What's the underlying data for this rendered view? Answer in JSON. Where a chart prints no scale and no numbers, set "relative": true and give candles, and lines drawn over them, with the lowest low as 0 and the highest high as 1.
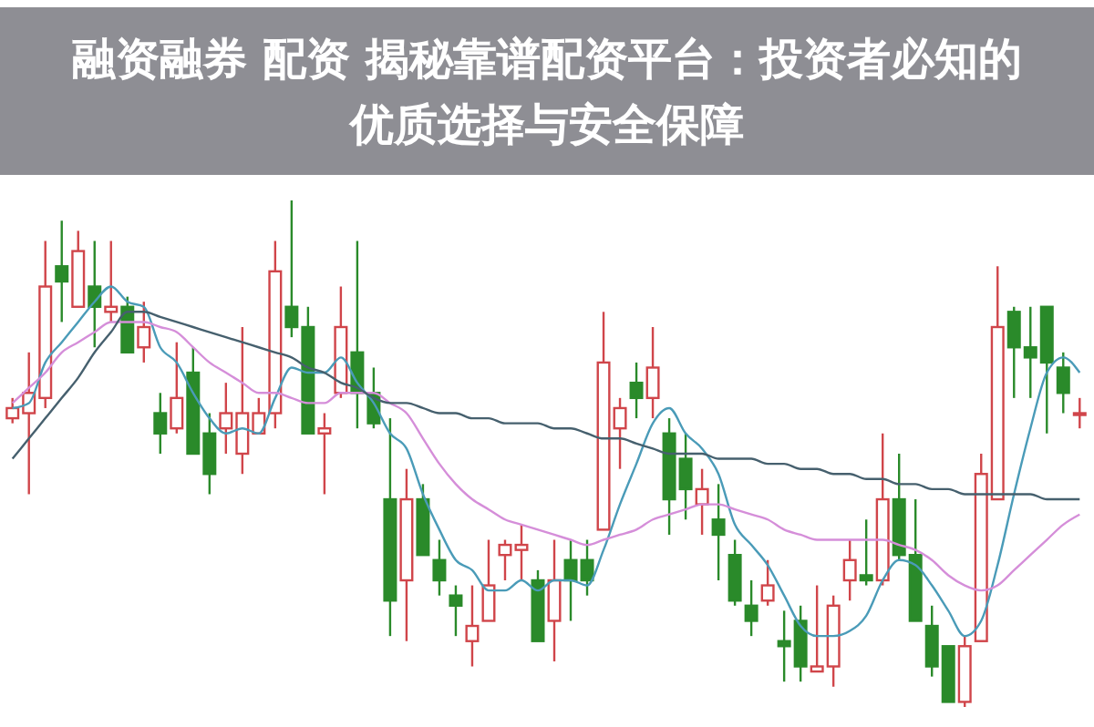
{
  "chart_data": {
    "type": "candlestick",
    "title": "融资融券 配资 揭秘靠谱配资平台：投资者必知的优质选择与安全保障",
    "relative": true,
    "categories": [
      null,
      null,
      null,
      null,
      null,
      null,
      null,
      null,
      null,
      null,
      null,
      null,
      null,
      null,
      null,
      null,
      null,
      null,
      null,
      null,
      null,
      null,
      null,
      null,
      null,
      null,
      null,
      null,
      null,
      null,
      null,
      null,
      null,
      null,
      null,
      null,
      null,
      null,
      null,
      null,
      null,
      null,
      null,
      null,
      null,
      null,
      null,
      null,
      null,
      null,
      null,
      null,
      null,
      null,
      null,
      null,
      null,
      null,
      null,
      null,
      null,
      null,
      null,
      null,
      null,
      null
    ],
    "ohlc": [
      [
        0.57,
        0.61,
        0.56,
        0.59
      ],
      [
        0.58,
        0.7,
        0.42,
        0.62
      ],
      [
        0.61,
        0.92,
        0.59,
        0.83
      ],
      [
        0.87,
        0.96,
        0.76,
        0.84
      ],
      [
        0.79,
        0.94,
        0.79,
        0.9
      ],
      [
        0.83,
        0.92,
        0.71,
        0.79
      ],
      [
        0.78,
        0.92,
        0.76,
        0.79
      ],
      [
        0.79,
        0.81,
        0.7,
        0.7
      ],
      [
        0.71,
        0.8,
        0.68,
        0.75
      ],
      [
        0.58,
        0.62,
        0.5,
        0.54
      ],
      [
        0.55,
        0.72,
        0.54,
        0.61
      ],
      [
        0.66,
        0.71,
        0.5,
        0.5
      ],
      [
        0.54,
        0.58,
        0.42,
        0.46
      ],
      [
        0.55,
        0.64,
        0.5,
        0.58
      ],
      [
        0.5,
        0.75,
        0.46,
        0.58
      ],
      [
        0.54,
        0.61,
        0.54,
        0.58
      ],
      [
        0.58,
        0.92,
        0.55,
        0.86
      ],
      [
        0.79,
        1,
        0.73,
        0.75
      ],
      [
        0.75,
        0.79,
        0.54,
        0.54
      ],
      [
        0.54,
        0.58,
        0.42,
        0.55
      ],
      [
        0.62,
        0.83,
        0.61,
        0.75
      ],
      [
        0.7,
        0.92,
        0.55,
        0.62
      ],
      [
        0.62,
        0.67,
        0.55,
        0.56
      ],
      [
        0.41,
        0.57,
        0.14,
        0.21
      ],
      [
        0.25,
        0.47,
        0.13,
        0.41
      ],
      [
        0.41,
        0.44,
        0.3,
        0.3
      ],
      [
        0.29,
        0.33,
        0.22,
        0.25
      ],
      [
        0.22,
        0.24,
        0.14,
        0.2
      ],
      [
        0.13,
        0.24,
        0.08,
        0.16
      ],
      [
        0.17,
        0.33,
        0.17,
        0.24
      ],
      [
        0.3,
        0.33,
        0.25,
        0.32
      ],
      [
        0.31,
        0.36,
        0.25,
        0.32
      ],
      [
        0.25,
        0.27,
        0.13,
        0.13
      ],
      [
        0.17,
        0.33,
        0.09,
        0.25
      ],
      [
        0.29,
        0.33,
        0.17,
        0.25
      ],
      [
        0.29,
        0.33,
        0.22,
        0.25
      ],
      [
        0.35,
        0.78,
        0.35,
        0.68
      ],
      [
        0.55,
        0.61,
        0.47,
        0.59
      ],
      [
        0.64,
        0.68,
        0.57,
        0.61
      ],
      [
        0.61,
        0.75,
        0.57,
        0.67
      ],
      [
        0.54,
        0.57,
        0.34,
        0.41
      ],
      [
        0.49,
        0.54,
        0.37,
        0.43
      ],
      [
        0.4,
        0.47,
        0.34,
        0.43
      ],
      [
        0.37,
        0.44,
        0.25,
        0.34
      ],
      [
        0.3,
        0.33,
        0.2,
        0.21
      ],
      [
        0.2,
        0.25,
        0.14,
        0.17
      ],
      [
        0.21,
        0.29,
        0.2,
        0.24
      ],
      [
        0.13,
        0.19,
        0.05,
        0.12
      ],
      [
        0.17,
        0.2,
        0.05,
        0.08
      ],
      [
        0.07,
        0.24,
        0.07,
        0.08
      ],
      [
        0.08,
        0.22,
        0.04,
        0.2
      ],
      [
        0.25,
        0.33,
        0.21,
        0.29
      ],
      [
        0.26,
        0.37,
        0.24,
        0.25
      ],
      [
        0.25,
        0.54,
        0.24,
        0.41
      ],
      [
        0.41,
        0.5,
        0.29,
        0.3
      ],
      [
        0.3,
        0.41,
        0.17,
        0.17
      ],
      [
        0.16,
        0.2,
        0.06,
        0.08
      ],
      [
        0.12,
        0.12,
        0.01,
        0.01
      ],
      [
        0.01,
        0.14,
        0,
        0.12
      ],
      [
        0.13,
        0.5,
        0.13,
        0.46
      ],
      [
        0.41,
        0.87,
        0.41,
        0.75
      ],
      [
        0.78,
        0.79,
        0.61,
        0.71
      ],
      [
        0.71,
        0.79,
        0.61,
        0.69
      ],
      [
        0.79,
        0.79,
        0.54,
        0.68
      ],
      [
        0.67,
        0.7,
        0.58,
        0.62
      ],
      [
        0.58,
        0.61,
        0.55,
        0.58
      ]
    ],
    "series": [
      {
        "type": "line",
        "color": "#4a9bb8",
        "values": [
          0.59,
          0.6,
          0.68,
          0.72,
          0.76,
          0.8,
          0.83,
          0.8,
          0.79,
          0.71,
          0.68,
          0.62,
          0.57,
          0.54,
          0.55,
          0.54,
          0.61,
          0.67,
          0.66,
          0.66,
          0.69,
          0.64,
          0.6,
          0.54,
          0.51,
          0.42,
          0.35,
          0.29,
          0.27,
          0.23,
          0.23,
          0.25,
          0.23,
          0.25,
          0.25,
          0.24,
          0.31,
          0.4,
          0.48,
          0.56,
          0.59,
          0.54,
          0.51,
          0.46,
          0.36,
          0.32,
          0.28,
          0.22,
          0.16,
          0.14,
          0.14,
          0.15,
          0.18,
          0.25,
          0.29,
          0.28,
          0.24,
          0.19,
          0.14,
          0.17,
          0.28,
          0.42,
          0.55,
          0.66,
          0.69,
          0.66
        ]
      },
      {
        "type": "line",
        "color": "#d58ed9",
        "values": [
          0.6,
          0.63,
          0.66,
          0.7,
          0.72,
          0.74,
          0.76,
          0.76,
          0.76,
          0.75,
          0.74,
          0.71,
          0.68,
          0.66,
          0.64,
          0.62,
          0.62,
          0.61,
          0.6,
          0.6,
          0.62,
          0.62,
          0.62,
          0.6,
          0.58,
          0.53,
          0.48,
          0.44,
          0.41,
          0.39,
          0.37,
          0.36,
          0.35,
          0.34,
          0.33,
          0.32,
          0.33,
          0.34,
          0.35,
          0.37,
          0.38,
          0.39,
          0.4,
          0.4,
          0.39,
          0.38,
          0.37,
          0.35,
          0.34,
          0.33,
          0.33,
          0.33,
          0.33,
          0.33,
          0.32,
          0.31,
          0.29,
          0.26,
          0.24,
          0.23,
          0.24,
          0.27,
          0.3,
          0.33,
          0.36,
          0.38
        ]
      },
      {
        "type": "line",
        "color": "#46606e",
        "values": [
          0.49,
          0.53,
          0.57,
          0.61,
          0.65,
          0.7,
          0.74,
          0.78,
          0.78,
          0.77,
          0.76,
          0.75,
          0.74,
          0.73,
          0.72,
          0.71,
          0.7,
          0.69,
          0.67,
          0.66,
          0.64,
          0.63,
          0.61,
          0.6,
          0.6,
          0.59,
          0.58,
          0.58,
          0.57,
          0.57,
          0.56,
          0.56,
          0.56,
          0.55,
          0.55,
          0.54,
          0.53,
          0.53,
          0.52,
          0.51,
          0.5,
          0.5,
          0.5,
          0.49,
          0.49,
          0.49,
          0.48,
          0.48,
          0.47,
          0.47,
          0.46,
          0.46,
          0.45,
          0.45,
          0.44,
          0.44,
          0.43,
          0.43,
          0.42,
          0.42,
          0.42,
          0.42,
          0.42,
          0.41,
          0.41,
          0.41
        ]
      }
    ]
  }
}
